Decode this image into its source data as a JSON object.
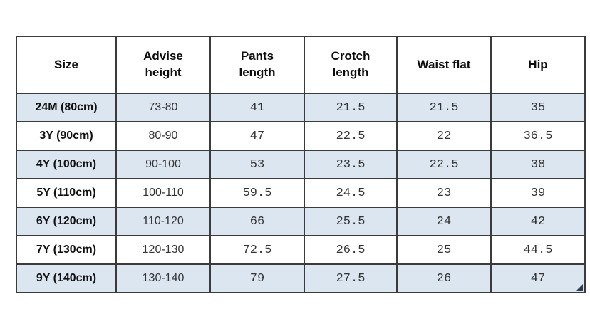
{
  "colors": {
    "row_shade": "#dce6f1",
    "border": "#3b3b3b",
    "header_text": "#0d0d0d",
    "value_text": "#333333",
    "background": "#ffffff"
  },
  "chart_data": {
    "type": "table",
    "columns": [
      "Size",
      "Advise height",
      "Pants length",
      "Crotch length",
      "Waist flat",
      "Hip"
    ],
    "column_keys": [
      "size",
      "advise-height",
      "pants-length",
      "crotch-length",
      "waist-flat",
      "hip"
    ],
    "rows": [
      [
        "24M (80cm)",
        "73-80",
        "41",
        "21.5",
        "21.5",
        "35"
      ],
      [
        "3Y (90cm)",
        "80-90",
        "47",
        "22.5",
        "22",
        "36.5"
      ],
      [
        "4Y (100cm)",
        "90-100",
        "53",
        "23.5",
        "22.5",
        "38"
      ],
      [
        "5Y (110cm)",
        "100-110",
        "59.5",
        "24.5",
        "23",
        "39"
      ],
      [
        "6Y (120cm)",
        "110-120",
        "66",
        "25.5",
        "24",
        "42"
      ],
      [
        "7Y (130cm)",
        "120-130",
        "72.5",
        "26.5",
        "25",
        "44.5"
      ],
      [
        "9Y (140cm)",
        "130-140",
        "79",
        "27.5",
        "26",
        "47"
      ]
    ],
    "shaded_rows": [
      0,
      2,
      4,
      6
    ],
    "layout_hints": {
      "header_row_two_line_wrap": true,
      "all_cells_centered": true,
      "selection_handle_bottom_right": true
    }
  }
}
